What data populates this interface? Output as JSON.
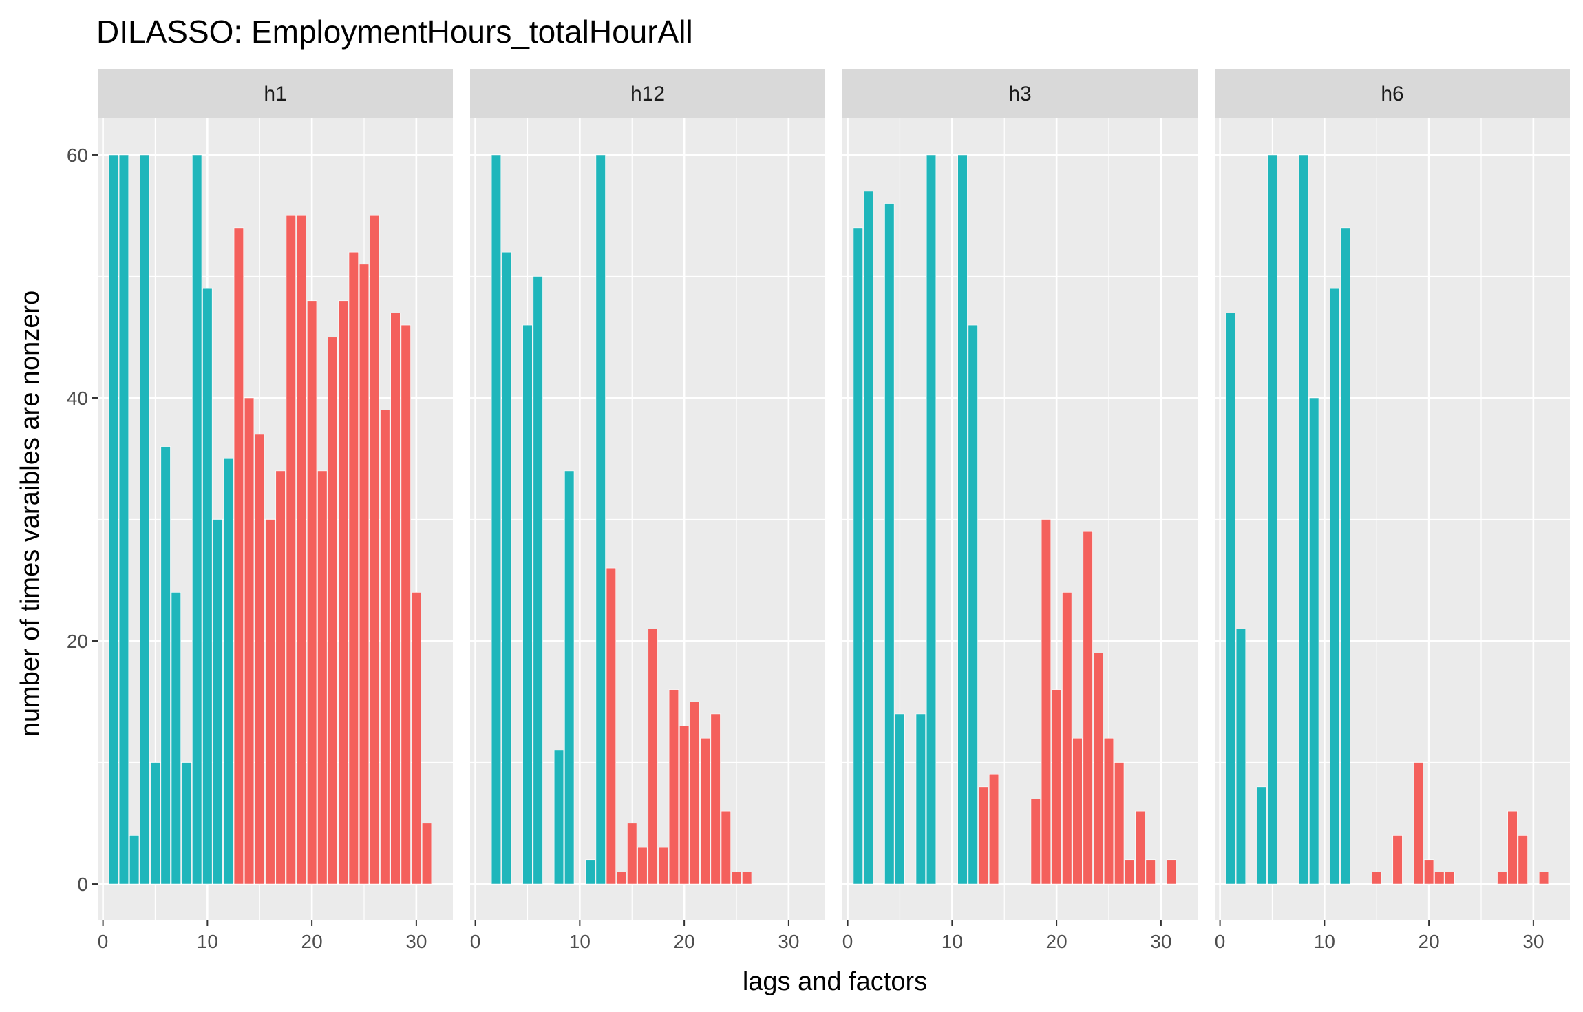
{
  "chart_data": {
    "type": "bar",
    "title": "DILASSO: EmploymentHours_totalHourAll",
    "xlabel": "lags and factors",
    "ylabel": "number of times varaibles are nonzero",
    "xlim": [
      -0.5,
      33.5
    ],
    "ylim": [
      -3,
      63
    ],
    "x_ticks": [
      0,
      10,
      20,
      30
    ],
    "y_ticks": [
      0,
      20,
      40,
      60
    ],
    "grid": true,
    "legend": "none",
    "group_colors": {
      "lag": "#1fb6bb",
      "factor": "#f4605c"
    },
    "facets": [
      {
        "label": "h1",
        "bars": [
          {
            "x": 1,
            "y": 60,
            "group": "lag"
          },
          {
            "x": 2,
            "y": 60,
            "group": "lag"
          },
          {
            "x": 3,
            "y": 4,
            "group": "lag"
          },
          {
            "x": 4,
            "y": 60,
            "group": "lag"
          },
          {
            "x": 5,
            "y": 10,
            "group": "lag"
          },
          {
            "x": 6,
            "y": 36,
            "group": "lag"
          },
          {
            "x": 7,
            "y": 24,
            "group": "lag"
          },
          {
            "x": 8,
            "y": 10,
            "group": "lag"
          },
          {
            "x": 9,
            "y": 60,
            "group": "lag"
          },
          {
            "x": 10,
            "y": 49,
            "group": "lag"
          },
          {
            "x": 11,
            "y": 30,
            "group": "lag"
          },
          {
            "x": 12,
            "y": 35,
            "group": "lag"
          },
          {
            "x": 13,
            "y": 54,
            "group": "factor"
          },
          {
            "x": 14,
            "y": 40,
            "group": "factor"
          },
          {
            "x": 15,
            "y": 37,
            "group": "factor"
          },
          {
            "x": 16,
            "y": 30,
            "group": "factor"
          },
          {
            "x": 17,
            "y": 34,
            "group": "factor"
          },
          {
            "x": 18,
            "y": 55,
            "group": "factor"
          },
          {
            "x": 19,
            "y": 55,
            "group": "factor"
          },
          {
            "x": 20,
            "y": 48,
            "group": "factor"
          },
          {
            "x": 21,
            "y": 34,
            "group": "factor"
          },
          {
            "x": 22,
            "y": 45,
            "group": "factor"
          },
          {
            "x": 23,
            "y": 48,
            "group": "factor"
          },
          {
            "x": 24,
            "y": 52,
            "group": "factor"
          },
          {
            "x": 25,
            "y": 51,
            "group": "factor"
          },
          {
            "x": 26,
            "y": 55,
            "group": "factor"
          },
          {
            "x": 27,
            "y": 39,
            "group": "factor"
          },
          {
            "x": 28,
            "y": 47,
            "group": "factor"
          },
          {
            "x": 29,
            "y": 46,
            "group": "factor"
          },
          {
            "x": 30,
            "y": 24,
            "group": "factor"
          },
          {
            "x": 31,
            "y": 5,
            "group": "factor"
          }
        ]
      },
      {
        "label": "h12",
        "bars": [
          {
            "x": 2,
            "y": 60,
            "group": "lag"
          },
          {
            "x": 3,
            "y": 52,
            "group": "lag"
          },
          {
            "x": 5,
            "y": 46,
            "group": "lag"
          },
          {
            "x": 6,
            "y": 50,
            "group": "lag"
          },
          {
            "x": 8,
            "y": 11,
            "group": "lag"
          },
          {
            "x": 9,
            "y": 34,
            "group": "lag"
          },
          {
            "x": 11,
            "y": 2,
            "group": "lag"
          },
          {
            "x": 12,
            "y": 60,
            "group": "lag"
          },
          {
            "x": 13,
            "y": 26,
            "group": "factor"
          },
          {
            "x": 14,
            "y": 1,
            "group": "factor"
          },
          {
            "x": 15,
            "y": 5,
            "group": "factor"
          },
          {
            "x": 16,
            "y": 3,
            "group": "factor"
          },
          {
            "x": 17,
            "y": 21,
            "group": "factor"
          },
          {
            "x": 18,
            "y": 3,
            "group": "factor"
          },
          {
            "x": 19,
            "y": 16,
            "group": "factor"
          },
          {
            "x": 20,
            "y": 13,
            "group": "factor"
          },
          {
            "x": 21,
            "y": 15,
            "group": "factor"
          },
          {
            "x": 22,
            "y": 12,
            "group": "factor"
          },
          {
            "x": 23,
            "y": 14,
            "group": "factor"
          },
          {
            "x": 24,
            "y": 6,
            "group": "factor"
          },
          {
            "x": 25,
            "y": 1,
            "group": "factor"
          },
          {
            "x": 26,
            "y": 1,
            "group": "factor"
          }
        ]
      },
      {
        "label": "h3",
        "bars": [
          {
            "x": 1,
            "y": 54,
            "group": "lag"
          },
          {
            "x": 2,
            "y": 57,
            "group": "lag"
          },
          {
            "x": 4,
            "y": 56,
            "group": "lag"
          },
          {
            "x": 5,
            "y": 14,
            "group": "lag"
          },
          {
            "x": 7,
            "y": 14,
            "group": "lag"
          },
          {
            "x": 8,
            "y": 60,
            "group": "lag"
          },
          {
            "x": 11,
            "y": 60,
            "group": "lag"
          },
          {
            "x": 12,
            "y": 46,
            "group": "lag"
          },
          {
            "x": 13,
            "y": 8,
            "group": "factor"
          },
          {
            "x": 14,
            "y": 9,
            "group": "factor"
          },
          {
            "x": 18,
            "y": 7,
            "group": "factor"
          },
          {
            "x": 19,
            "y": 30,
            "group": "factor"
          },
          {
            "x": 20,
            "y": 16,
            "group": "factor"
          },
          {
            "x": 21,
            "y": 24,
            "group": "factor"
          },
          {
            "x": 22,
            "y": 12,
            "group": "factor"
          },
          {
            "x": 23,
            "y": 29,
            "group": "factor"
          },
          {
            "x": 24,
            "y": 19,
            "group": "factor"
          },
          {
            "x": 25,
            "y": 12,
            "group": "factor"
          },
          {
            "x": 26,
            "y": 10,
            "group": "factor"
          },
          {
            "x": 27,
            "y": 2,
            "group": "factor"
          },
          {
            "x": 28,
            "y": 6,
            "group": "factor"
          },
          {
            "x": 29,
            "y": 2,
            "group": "factor"
          },
          {
            "x": 31,
            "y": 2,
            "group": "factor"
          }
        ]
      },
      {
        "label": "h6",
        "bars": [
          {
            "x": 1,
            "y": 47,
            "group": "lag"
          },
          {
            "x": 2,
            "y": 21,
            "group": "lag"
          },
          {
            "x": 4,
            "y": 8,
            "group": "lag"
          },
          {
            "x": 5,
            "y": 60,
            "group": "lag"
          },
          {
            "x": 8,
            "y": 60,
            "group": "lag"
          },
          {
            "x": 9,
            "y": 40,
            "group": "lag"
          },
          {
            "x": 11,
            "y": 49,
            "group": "lag"
          },
          {
            "x": 12,
            "y": 54,
            "group": "lag"
          },
          {
            "x": 15,
            "y": 1,
            "group": "factor"
          },
          {
            "x": 17,
            "y": 4,
            "group": "factor"
          },
          {
            "x": 19,
            "y": 10,
            "group": "factor"
          },
          {
            "x": 20,
            "y": 2,
            "group": "factor"
          },
          {
            "x": 21,
            "y": 1,
            "group": "factor"
          },
          {
            "x": 22,
            "y": 1,
            "group": "factor"
          },
          {
            "x": 27,
            "y": 1,
            "group": "factor"
          },
          {
            "x": 28,
            "y": 6,
            "group": "factor"
          },
          {
            "x": 29,
            "y": 4,
            "group": "factor"
          },
          {
            "x": 31,
            "y": 1,
            "group": "factor"
          }
        ]
      }
    ]
  }
}
